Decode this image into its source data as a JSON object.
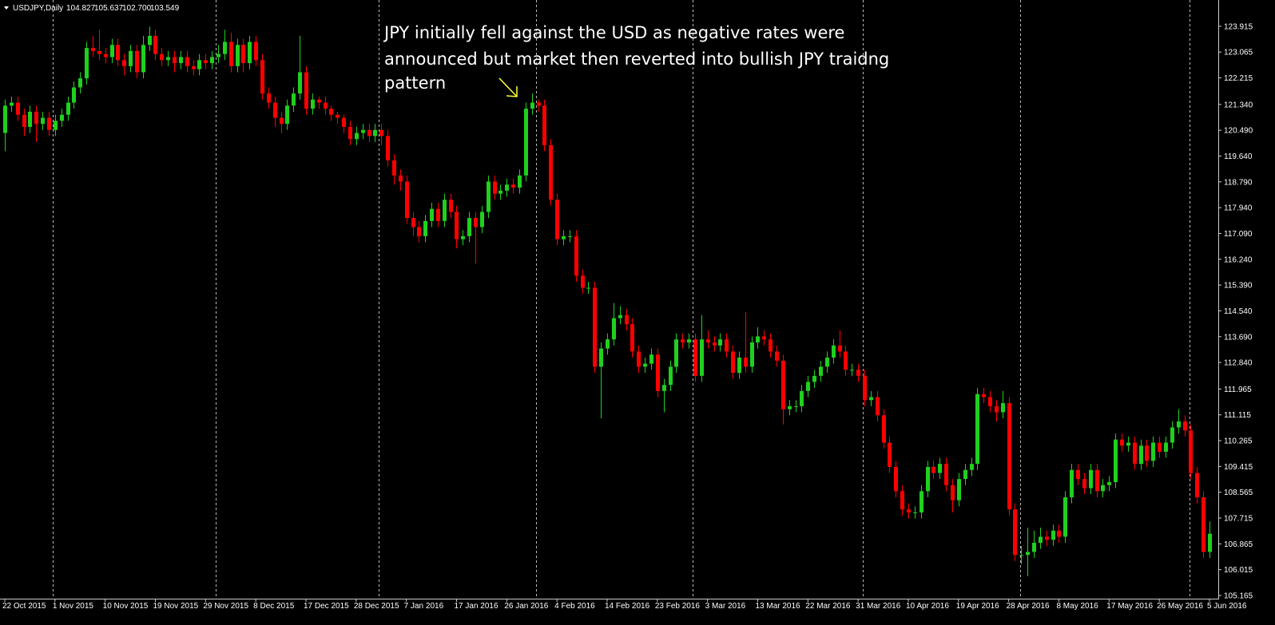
{
  "header": {
    "symbol": "USDJPY,Daily",
    "ohlc": [
      "104.827",
      "105.637",
      "102.700",
      "103.549"
    ]
  },
  "chart_data": {
    "type": "candlestick",
    "annotation": [
      "JPY initially fell against the USD as negative rates were",
      "announced but market then reverted into bullish JPY traidng",
      "pattern"
    ],
    "up_color": "#1fd01f",
    "down_color": "#ff0000",
    "ylim": [
      105.06,
      124.78
    ],
    "yticks": [
      123.915,
      123.065,
      122.215,
      {
        "value": 121.34,
        "label": "121.340"
      },
      {
        "value": 120.49,
        "label": "120.490"
      },
      {
        "value": 119.64,
        "label": "119.640"
      },
      {
        "value": 118.79,
        "label": "118.790"
      },
      {
        "value": 117.94,
        "label": "117.940"
      },
      {
        "value": 117.09,
        "label": "117.090"
      },
      {
        "value": 116.24,
        "label": "116.240"
      },
      {
        "value": 115.39,
        "label": "115.390"
      },
      {
        "value": 114.54,
        "label": "114.540"
      },
      {
        "value": 113.69,
        "label": "113.690"
      },
      {
        "value": 112.84,
        "label": "112.840"
      },
      111.965,
      111.115,
      110.265,
      109.415,
      108.565,
      107.715,
      106.865,
      106.015,
      105.165
    ],
    "categories": [
      "22 Oct 2015",
      null,
      null,
      null,
      null,
      null,
      null,
      null,
      "1 Nov 2015",
      null,
      null,
      null,
      null,
      null,
      null,
      null,
      "10 Nov 2015",
      null,
      null,
      null,
      null,
      null,
      null,
      null,
      "19 Nov 2015",
      null,
      null,
      null,
      null,
      null,
      null,
      null,
      "29 Nov 2015",
      null,
      null,
      null,
      null,
      null,
      null,
      null,
      "8 Dec 2015",
      null,
      null,
      null,
      null,
      null,
      null,
      null,
      "17 Dec 2015",
      null,
      null,
      null,
      null,
      null,
      null,
      null,
      "28 Dec 2015",
      null,
      null,
      null,
      null,
      null,
      null,
      null,
      "7 Jan 2016",
      null,
      null,
      null,
      null,
      null,
      null,
      null,
      "17 Jan 2016",
      null,
      null,
      null,
      null,
      null,
      null,
      null,
      "26 Jan 2016",
      null,
      null,
      null,
      null,
      null,
      null,
      null,
      "4 Feb 2016",
      null,
      null,
      null,
      null,
      null,
      null,
      null,
      "14 Feb 2016",
      null,
      null,
      null,
      null,
      null,
      null,
      null,
      "23 Feb 2016",
      null,
      null,
      null,
      null,
      null,
      null,
      null,
      "3 Mar 2016",
      null,
      null,
      null,
      null,
      null,
      null,
      null,
      "13 Mar 2016",
      null,
      null,
      null,
      null,
      null,
      null,
      null,
      "22 Mar 2016",
      null,
      null,
      null,
      null,
      null,
      null,
      null,
      "31 Mar 2016",
      null,
      null,
      null,
      null,
      null,
      null,
      null,
      "10 Apr 2016",
      null,
      null,
      null,
      null,
      null,
      null,
      null,
      "19 Apr 2016",
      null,
      null,
      null,
      null,
      null,
      null,
      null,
      "28 Apr 2016",
      null,
      null,
      null,
      null,
      null,
      null,
      null,
      "8 May 2016",
      null,
      null,
      null,
      null,
      null,
      null,
      null,
      "17 May 2016",
      null,
      null,
      null,
      null,
      null,
      null,
      null,
      "26 May 2016",
      null,
      null,
      null,
      null,
      null,
      null,
      null,
      "5 Jun 2016"
    ],
    "open": [
      120.4,
      121.3,
      121.4,
      121.0,
      120.6,
      121.1,
      120.7,
      120.9,
      120.5,
      120.8,
      121.0,
      121.4,
      121.9,
      122.2,
      123.2,
      123.1,
      123.0,
      122.9,
      123.3,
      122.8,
      122.6,
      123.1,
      122.4,
      123.3,
      123.6,
      123.0,
      122.8,
      122.9,
      122.7,
      122.9,
      122.6,
      122.5,
      122.8,
      122.7,
      122.9,
      123.0,
      123.4,
      122.6,
      123.3,
      122.7,
      123.4,
      122.8,
      121.7,
      121.4,
      120.9,
      120.7,
      121.3,
      121.7,
      122.4,
      121.2,
      121.5,
      121.4,
      121.2,
      121.0,
      120.9,
      120.6,
      120.2,
      120.4,
      120.5,
      120.3,
      120.5,
      120.3,
      119.5,
      119.0,
      118.8,
      117.6,
      117.3,
      117.0,
      117.5,
      117.9,
      117.5,
      118.2,
      117.8,
      116.9,
      117.0,
      117.6,
      117.3,
      117.8,
      118.8,
      118.4,
      118.5,
      118.7,
      118.6,
      119.0,
      121.2,
      121.4,
      121.3,
      120.0,
      118.2,
      116.9,
      117.0,
      117.0,
      115.7,
      115.3,
      115.3,
      112.7,
      113.3,
      113.6,
      114.3,
      114.4,
      114.1,
      113.2,
      112.7,
      112.8,
      113.1,
      111.9,
      112.1,
      112.7,
      113.6,
      113.5,
      113.6,
      112.4,
      113.6,
      113.5,
      113.4,
      113.6,
      113.2,
      112.5,
      113.0,
      112.7,
      113.5,
      113.7,
      113.6,
      113.2,
      112.9,
      111.3,
      111.4,
      111.4,
      111.9,
      112.2,
      112.4,
      112.7,
      113.0,
      113.4,
      113.2,
      112.6,
      112.6,
      112.4,
      111.6,
      111.7,
      111.1,
      110.2,
      109.4,
      108.6,
      108.0,
      107.9,
      107.9,
      108.6,
      109.4,
      109.2,
      109.5,
      108.8,
      108.3,
      109.0,
      109.3,
      109.5,
      111.8,
      111.7,
      111.4,
      111.2,
      111.5,
      108.0,
      106.5,
      106.5,
      106.6,
      106.9,
      107.1,
      107.0,
      107.3,
      107.1,
      108.4,
      109.3,
      109.0,
      108.7,
      109.3,
      108.6,
      108.8,
      108.9,
      110.3,
      110.1,
      110.2,
      109.5,
      110.1,
      109.6,
      110.2,
      109.9,
      110.2,
      110.7,
      110.9,
      110.6,
      109.2,
      108.4,
      106.6
    ],
    "high": [
      121.5,
      121.6,
      121.6,
      121.2,
      121.3,
      121.3,
      121.1,
      121.1,
      121.0,
      121.2,
      121.6,
      122.1,
      122.4,
      123.4,
      123.6,
      123.8,
      123.2,
      123.5,
      123.5,
      123.0,
      123.3,
      123.3,
      123.6,
      123.9,
      123.8,
      123.2,
      123.1,
      123.1,
      123.1,
      123.1,
      122.8,
      123.0,
      123.0,
      123.1,
      123.3,
      123.8,
      123.7,
      123.5,
      123.5,
      123.6,
      123.6,
      123.0,
      121.9,
      121.6,
      121.1,
      121.5,
      121.9,
      123.6,
      122.6,
      121.7,
      121.6,
      121.6,
      121.3,
      121.1,
      121.0,
      120.8,
      120.6,
      120.7,
      120.7,
      120.7,
      120.7,
      120.5,
      119.7,
      119.2,
      119.0,
      117.8,
      117.5,
      117.7,
      118.1,
      118.1,
      118.4,
      118.4,
      118.0,
      117.2,
      117.8,
      117.8,
      118.0,
      119.0,
      119.0,
      118.7,
      118.9,
      118.9,
      119.2,
      121.4,
      121.7,
      121.5,
      121.5,
      120.2,
      118.4,
      117.2,
      117.2,
      117.2,
      115.9,
      115.5,
      115.5,
      113.5,
      113.8,
      114.8,
      114.7,
      114.6,
      114.3,
      113.4,
      113.0,
      113.3,
      113.3,
      112.3,
      112.9,
      113.8,
      113.8,
      113.8,
      113.8,
      114.4,
      113.9,
      113.7,
      113.8,
      113.8,
      113.4,
      113.2,
      114.5,
      113.7,
      114.0,
      113.9,
      113.8,
      113.4,
      113.1,
      111.6,
      111.6,
      112.1,
      112.4,
      112.6,
      112.9,
      113.2,
      113.6,
      113.9,
      113.4,
      112.8,
      112.8,
      112.6,
      111.9,
      111.9,
      111.3,
      110.4,
      109.6,
      108.8,
      108.2,
      108.1,
      108.8,
      109.6,
      109.6,
      109.7,
      109.7,
      109.0,
      109.2,
      109.5,
      109.7,
      112.0,
      112.0,
      111.9,
      111.6,
      111.9,
      111.7,
      108.2,
      106.8,
      107.4,
      107.3,
      107.4,
      107.3,
      107.5,
      107.5,
      108.6,
      109.5,
      109.5,
      109.2,
      109.5,
      109.5,
      109.0,
      109.1,
      110.5,
      110.5,
      110.4,
      110.4,
      110.3,
      110.3,
      110.4,
      110.4,
      110.4,
      110.9,
      111.3,
      111.1,
      110.8,
      109.4,
      108.6,
      107.6
    ],
    "low": [
      119.8,
      121.1,
      120.8,
      120.3,
      120.4,
      120.1,
      120.5,
      120.3,
      120.3,
      120.6,
      120.8,
      121.2,
      121.7,
      122.0,
      122.9,
      122.8,
      122.7,
      122.7,
      122.6,
      122.3,
      122.4,
      122.2,
      122.2,
      123.1,
      122.8,
      122.6,
      122.6,
      122.4,
      122.5,
      122.4,
      122.3,
      122.3,
      122.5,
      122.5,
      122.7,
      122.8,
      122.4,
      122.4,
      122.4,
      122.5,
      122.6,
      121.5,
      121.2,
      120.6,
      120.4,
      120.5,
      121.1,
      121.5,
      121.0,
      121.0,
      121.2,
      121.0,
      120.8,
      120.7,
      120.4,
      120.0,
      120.0,
      120.2,
      120.1,
      120.1,
      120.0,
      119.3,
      118.7,
      118.5,
      117.4,
      117.0,
      116.8,
      116.8,
      117.3,
      117.3,
      117.3,
      117.6,
      116.6,
      116.7,
      116.8,
      116.1,
      117.1,
      117.6,
      118.2,
      118.2,
      118.3,
      118.4,
      118.4,
      118.8,
      121.0,
      121.1,
      119.8,
      118.0,
      116.7,
      116.7,
      116.8,
      115.5,
      115.1,
      115.1,
      112.5,
      111.0,
      113.1,
      113.4,
      114.1,
      113.9,
      113.0,
      112.5,
      112.5,
      112.6,
      111.7,
      111.2,
      111.9,
      112.5,
      113.3,
      113.3,
      112.2,
      112.2,
      113.3,
      113.2,
      113.2,
      113.0,
      112.3,
      112.3,
      112.5,
      112.5,
      113.3,
      113.4,
      113.0,
      112.7,
      110.8,
      111.1,
      111.2,
      111.2,
      111.7,
      112.0,
      112.2,
      112.5,
      112.8,
      113.0,
      112.4,
      112.4,
      112.2,
      111.4,
      111.4,
      110.9,
      110.0,
      109.2,
      108.4,
      107.8,
      107.7,
      107.7,
      107.7,
      108.4,
      109.0,
      109.0,
      108.6,
      107.9,
      108.1,
      108.8,
      109.1,
      109.3,
      111.5,
      111.2,
      110.9,
      111.0,
      107.8,
      106.3,
      106.2,
      105.8,
      106.4,
      106.7,
      106.8,
      106.8,
      106.9,
      106.9,
      108.2,
      108.8,
      108.5,
      108.5,
      108.4,
      108.4,
      108.6,
      108.7,
      109.9,
      109.9,
      109.3,
      109.3,
      109.4,
      109.4,
      109.7,
      109.7,
      110.0,
      110.5,
      110.4,
      109.0,
      108.2,
      106.4,
      106.4
    ],
    "close": [
      121.3,
      121.4,
      121.0,
      120.6,
      121.1,
      120.7,
      120.9,
      120.5,
      120.8,
      121.0,
      121.4,
      121.9,
      122.2,
      123.2,
      123.1,
      123.0,
      122.9,
      123.3,
      122.8,
      122.6,
      123.1,
      122.4,
      123.3,
      123.6,
      123.0,
      122.8,
      122.9,
      122.7,
      122.9,
      122.6,
      122.5,
      122.8,
      122.7,
      122.9,
      123.0,
      123.4,
      122.6,
      123.3,
      122.7,
      123.4,
      122.8,
      121.7,
      121.4,
      120.9,
      120.7,
      121.3,
      121.7,
      122.4,
      121.2,
      121.5,
      121.4,
      121.2,
      121.0,
      120.9,
      120.6,
      120.2,
      120.4,
      120.5,
      120.3,
      120.5,
      120.3,
      119.5,
      119.0,
      118.8,
      117.6,
      117.3,
      117.0,
      117.5,
      117.9,
      117.5,
      118.2,
      117.8,
      116.9,
      117.0,
      117.6,
      117.3,
      117.8,
      118.8,
      118.4,
      118.5,
      118.7,
      118.6,
      119.0,
      121.2,
      121.4,
      121.3,
      120.0,
      118.2,
      116.9,
      117.0,
      117.0,
      115.7,
      115.3,
      115.3,
      112.7,
      113.3,
      113.6,
      114.3,
      114.4,
      114.1,
      113.2,
      112.7,
      112.8,
      113.1,
      111.9,
      112.1,
      112.7,
      113.6,
      113.5,
      113.6,
      112.4,
      113.6,
      113.5,
      113.4,
      113.6,
      113.2,
      112.5,
      113.0,
      112.7,
      113.5,
      113.7,
      113.6,
      113.2,
      112.9,
      111.3,
      111.4,
      111.4,
      111.9,
      112.2,
      112.4,
      112.7,
      113.0,
      113.4,
      113.2,
      112.6,
      112.6,
      112.4,
      111.6,
      111.7,
      111.1,
      110.2,
      109.4,
      108.6,
      108.0,
      107.9,
      107.9,
      108.6,
      109.4,
      109.2,
      109.5,
      108.8,
      108.3,
      109.0,
      109.3,
      109.5,
      111.8,
      111.7,
      111.4,
      111.2,
      111.5,
      108.0,
      106.5,
      106.5,
      106.6,
      106.9,
      107.1,
      107.0,
      107.3,
      107.1,
      108.4,
      109.3,
      109.0,
      108.7,
      109.3,
      108.6,
      108.8,
      108.9,
      110.3,
      110.1,
      110.2,
      109.5,
      110.1,
      109.6,
      110.2,
      109.9,
      110.2,
      110.7,
      110.9,
      110.6,
      109.2,
      108.4,
      106.6,
      107.2
    ]
  }
}
